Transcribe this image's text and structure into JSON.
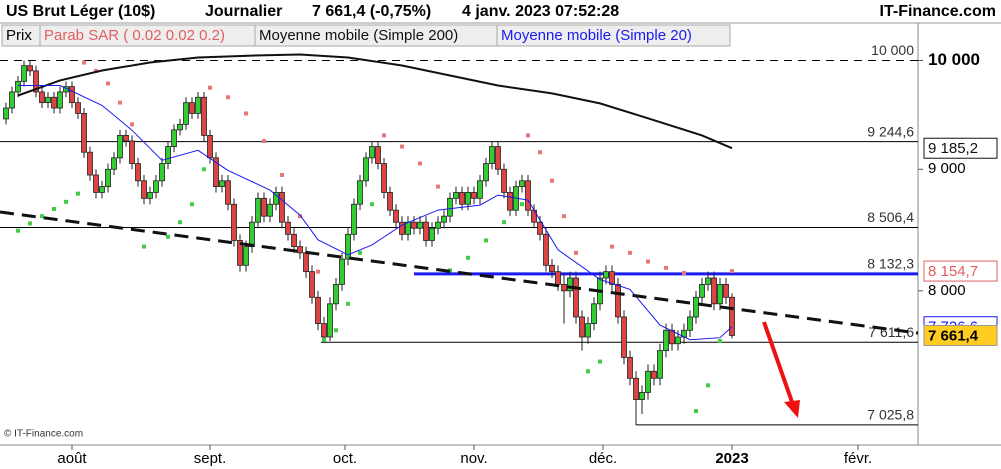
{
  "chart_data": {
    "type": "candlestick",
    "title": "US Brut Léger (10$)",
    "period": "Journalier",
    "price_change": "7 661,4 (-0,75%)",
    "datetime": "4 janv. 2023 07:52:28",
    "source": "IT-Finance.com",
    "footer": "© IT-Finance.com",
    "log_scale": true,
    "xlim": [
      -1,
      152
    ],
    "ylim": [
      6890,
      10370
    ],
    "xticks": [
      {
        "value": 11,
        "label": "août"
      },
      {
        "value": 34,
        "label": "sept."
      },
      {
        "value": 56.5,
        "label": "oct."
      },
      {
        "value": 78,
        "label": "nov."
      },
      {
        "value": 99.5,
        "label": "déc."
      },
      {
        "value": 121,
        "label": "2023"
      },
      {
        "value": 142,
        "label": "févr."
      }
    ],
    "yticks": [
      {
        "value": 10000,
        "label": "10 000"
      },
      {
        "value": 9000,
        "label": "9 000"
      },
      {
        "value": 8000,
        "label": "8 000"
      }
    ],
    "candles": {
      "name": "Prix",
      "up_color": "#33cc33",
      "down_color": "#dd4444",
      "label_fill": "#ffcc22",
      "last_label": "7 661,4",
      "ohlc": [
        [
          9450,
          9600,
          9400,
          9550
        ],
        [
          9550,
          9750,
          9500,
          9700
        ],
        [
          9700,
          9850,
          9650,
          9800
        ],
        [
          9800,
          10000,
          9750,
          9950
        ],
        [
          9950,
          10000,
          9850,
          9900
        ],
        [
          9900,
          9950,
          9650,
          9700
        ],
        [
          9700,
          9750,
          9550,
          9600
        ],
        [
          9600,
          9700,
          9550,
          9650
        ],
        [
          9650,
          9700,
          9500,
          9550
        ],
        [
          9550,
          9750,
          9500,
          9700
        ],
        [
          9700,
          9800,
          9650,
          9750
        ],
        [
          9750,
          9800,
          9550,
          9600
        ],
        [
          9600,
          9650,
          9450,
          9500
        ],
        [
          9500,
          9550,
          9100,
          9150
        ],
        [
          9150,
          9200,
          8900,
          8950
        ],
        [
          8950,
          9000,
          8750,
          8800
        ],
        [
          8800,
          8900,
          8750,
          8850
        ],
        [
          8850,
          9050,
          8800,
          9000
        ],
        [
          9000,
          9150,
          8950,
          9100
        ],
        [
          9100,
          9350,
          9050,
          9300
        ],
        [
          9300,
          9350,
          9200,
          9250
        ],
        [
          9250,
          9300,
          9000,
          9050
        ],
        [
          9050,
          9100,
          8850,
          8900
        ],
        [
          8900,
          8950,
          8700,
          8750
        ],
        [
          8750,
          8850,
          8700,
          8800
        ],
        [
          8800,
          8950,
          8750,
          8900
        ],
        [
          8900,
          9100,
          8850,
          9050
        ],
        [
          9050,
          9250,
          9000,
          9200
        ],
        [
          9200,
          9400,
          9150,
          9350
        ],
        [
          9350,
          9450,
          9300,
          9400
        ],
        [
          9400,
          9650,
          9350,
          9600
        ],
        [
          9600,
          9650,
          9450,
          9500
        ],
        [
          9500,
          9700,
          9450,
          9650
        ],
        [
          9650,
          9700,
          9250,
          9300
        ],
        [
          9300,
          9350,
          9050,
          9100
        ],
        [
          9100,
          9150,
          8800,
          8850
        ],
        [
          8850,
          8950,
          8800,
          8900
        ],
        [
          8900,
          8950,
          8650,
          8700
        ],
        [
          8700,
          8750,
          8350,
          8400
        ],
        [
          8400,
          8450,
          8150,
          8200
        ],
        [
          8200,
          8400,
          8150,
          8350
        ],
        [
          8350,
          8600,
          8300,
          8550
        ],
        [
          8550,
          8800,
          8500,
          8750
        ],
        [
          8750,
          8800,
          8550,
          8600
        ],
        [
          8600,
          8750,
          8550,
          8700
        ],
        [
          8700,
          8850,
          8650,
          8800
        ],
        [
          8800,
          8850,
          8500,
          8550
        ],
        [
          8550,
          8600,
          8400,
          8450
        ],
        [
          8450,
          8500,
          8300,
          8350
        ],
        [
          8350,
          8400,
          8250,
          8300
        ],
        [
          8300,
          8350,
          8100,
          8150
        ],
        [
          8150,
          8200,
          7900,
          7950
        ],
        [
          7950,
          8000,
          7700,
          7750
        ],
        [
          7750,
          7800,
          7611.6,
          7650
        ],
        [
          7650,
          7950,
          7620,
          7900
        ],
        [
          7900,
          8100,
          7850,
          8050
        ],
        [
          8050,
          8300,
          8000,
          8250
        ],
        [
          8250,
          8500,
          8200,
          8450
        ],
        [
          8450,
          8750,
          8400,
          8700
        ],
        [
          8700,
          8950,
          8650,
          8900
        ],
        [
          8900,
          9150,
          8850,
          9100
        ],
        [
          9100,
          9244.6,
          9050,
          9200
        ],
        [
          9200,
          9240,
          9000,
          9050
        ],
        [
          9050,
          9100,
          8750,
          8800
        ],
        [
          8800,
          8850,
          8600,
          8650
        ],
        [
          8650,
          8700,
          8500,
          8550
        ],
        [
          8550,
          8600,
          8400,
          8450
        ],
        [
          8450,
          8600,
          8400,
          8550
        ],
        [
          8550,
          8600,
          8450,
          8500
        ],
        [
          8500,
          8600,
          8450,
          8550
        ],
        [
          8550,
          8600,
          8350,
          8400
        ],
        [
          8400,
          8550,
          8350,
          8500
        ],
        [
          8500,
          8600,
          8450,
          8550
        ],
        [
          8550,
          8650,
          8500,
          8600
        ],
        [
          8600,
          8800,
          8550,
          8750
        ],
        [
          8750,
          8850,
          8700,
          8800
        ],
        [
          8800,
          8850,
          8650,
          8700
        ],
        [
          8700,
          8850,
          8650,
          8800
        ],
        [
          8800,
          8850,
          8700,
          8750
        ],
        [
          8750,
          8950,
          8700,
          8900
        ],
        [
          8900,
          9100,
          8850,
          9050
        ],
        [
          9050,
          9240,
          9000,
          9200
        ],
        [
          9200,
          9240,
          8950,
          9000
        ],
        [
          9000,
          9050,
          8750,
          8800
        ],
        [
          8800,
          8850,
          8600,
          8650
        ],
        [
          8650,
          8900,
          8600,
          8850
        ],
        [
          8850,
          8950,
          8800,
          8900
        ],
        [
          8900,
          8950,
          8600,
          8650
        ],
        [
          8650,
          8700,
          8500,
          8550
        ],
        [
          8550,
          8600,
          8400,
          8450
        ],
        [
          8450,
          8500,
          8150,
          8200
        ],
        [
          8200,
          8250,
          8100,
          8150
        ],
        [
          8150,
          8200,
          8000,
          8050
        ],
        [
          8050,
          8132.3,
          7750,
          8000
        ],
        [
          8000,
          8150,
          7950,
          8100
        ],
        [
          8100,
          8150,
          7750,
          7800
        ],
        [
          7800,
          7850,
          7550,
          7650
        ],
        [
          7650,
          7800,
          7600,
          7750
        ],
        [
          7750,
          7950,
          7700,
          7900
        ],
        [
          7900,
          8150,
          7850,
          8100
        ],
        [
          8100,
          8200,
          8050,
          8150
        ],
        [
          8150,
          8200,
          8000,
          8050
        ],
        [
          8050,
          8100,
          7750,
          7800
        ],
        [
          7800,
          7850,
          7450,
          7500
        ],
        [
          7500,
          7550,
          7300,
          7350
        ],
        [
          7350,
          7400,
          7025.8,
          7200
        ],
        [
          7200,
          7300,
          7100,
          7250
        ],
        [
          7250,
          7450,
          7200,
          7400
        ],
        [
          7400,
          7450,
          7300,
          7350
        ],
        [
          7350,
          7600,
          7300,
          7550
        ],
        [
          7550,
          7750,
          7500,
          7700
        ],
        [
          7700,
          7750,
          7550,
          7600
        ],
        [
          7600,
          7700,
          7550,
          7650
        ],
        [
          7650,
          7750,
          7600,
          7700
        ],
        [
          7700,
          7850,
          7650,
          7800
        ],
        [
          7800,
          8000,
          7750,
          7950
        ],
        [
          7950,
          8100,
          7900,
          8050
        ],
        [
          8050,
          8150,
          8000,
          8100
        ],
        [
          8100,
          8150,
          7850,
          7900
        ],
        [
          7900,
          8100,
          7850,
          8050
        ],
        [
          8050,
          8100,
          7900,
          7950
        ],
        [
          7950,
          7980,
          7640,
          7661.4
        ]
      ]
    },
    "series": [
      {
        "name": "Parab SAR ( 0.02 0.02 0.2)",
        "kind": "dots",
        "color": "#e06060",
        "up_color": "#44cc44",
        "down_color": "#e87878",
        "last_label": "8 154,7",
        "x": [
          2,
          4,
          6,
          8,
          10,
          12,
          13,
          15,
          17,
          19,
          21,
          23,
          27,
          29,
          31,
          33,
          34,
          37,
          40,
          43,
          46,
          49,
          52,
          53,
          55,
          57,
          59,
          61,
          63,
          66,
          69,
          72,
          74,
          77,
          80,
          83,
          86,
          87,
          89,
          91,
          93,
          95,
          97,
          99,
          101,
          104,
          107,
          110,
          113,
          115,
          117,
          119,
          121
        ],
        "values": [
          8480,
          8540,
          8600,
          8660,
          8720,
          8790,
          9980,
          9900,
          9780,
          9600,
          9400,
          8350,
          8430,
          8550,
          8700,
          9000,
          9740,
          9650,
          9500,
          9250,
          8950,
          8600,
          8150,
          7630,
          7700,
          7900,
          8300,
          8700,
          9300,
          9200,
          9050,
          8850,
          8160,
          8260,
          8400,
          8550,
          8700,
          9300,
          9150,
          8900,
          8600,
          8300,
          7400,
          7470,
          8350,
          8300,
          8230,
          8180,
          8140,
          7120,
          7300,
          7620,
          8154.7
        ]
      },
      {
        "name": "Moyenne mobile (Simple 200)",
        "kind": "line",
        "color": "#111111",
        "last_label": "9 185,2",
        "x": [
          2,
          9,
          16,
          24,
          32,
          41,
          49,
          57,
          66,
          74,
          82,
          91,
          99,
          107,
          116,
          121
        ],
        "values": [
          9667,
          9809,
          9904,
          9981,
          10029,
          10048,
          10058,
          10029,
          9952,
          9856,
          9761,
          9686,
          9593,
          9455,
          9300,
          9185.2
        ]
      },
      {
        "name": "Moyenne mobile (Simple 20)",
        "kind": "line",
        "color": "#1a1aee",
        "last_label": "7 726,6",
        "x": [
          2,
          9,
          16,
          21,
          26,
          32,
          37,
          44,
          49,
          52,
          57,
          61,
          66,
          72,
          79,
          82,
          87,
          92,
          99,
          104,
          109,
          114,
          119,
          121
        ],
        "values": [
          9761,
          9761,
          9574,
          9347,
          9078,
          9167,
          8990,
          8820,
          8609,
          8405,
          8284,
          8364,
          8526,
          8651,
          8693,
          8777,
          8735,
          8324,
          8088,
          8011,
          7739,
          7630,
          7645,
          7726.6
        ]
      }
    ],
    "levels": [
      {
        "value": 10000,
        "label": "10 000",
        "from": -1,
        "color": "#000000",
        "dashed": true
      },
      {
        "value": 9244.6,
        "label": "9 244,6",
        "from": -1,
        "color": "#000000",
        "dashed": false
      },
      {
        "value": 8506.4,
        "label": "8 506,4",
        "from": -1,
        "color": "#000000",
        "dashed": false
      },
      {
        "value": 8132.3,
        "label": "8 132,3",
        "from": 68,
        "color": "#1a1aee",
        "dashed": false
      },
      {
        "value": 7611.6,
        "label": "7 611,6",
        "from": 52.5,
        "color": "#000000",
        "dashed": false
      },
      {
        "value": 7025.8,
        "label": "7 025,8",
        "from": 105,
        "color": "#000000",
        "dashed": false
      }
    ]
  }
}
